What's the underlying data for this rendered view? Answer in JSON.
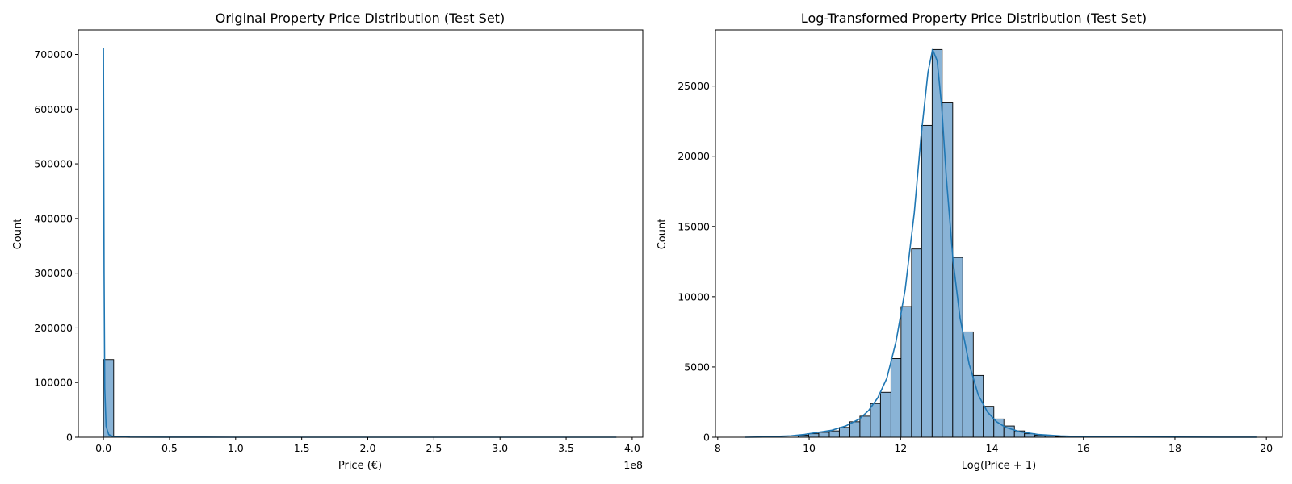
{
  "chart_data": [
    {
      "type": "histogram",
      "title": "Original Property Price Distribution (Test Set)",
      "xlabel": "Price (€)",
      "ylabel": "Count",
      "x_offset_label": "1e8",
      "xlim": [
        -0.19,
        4.08
      ],
      "ylim": [
        0,
        745000
      ],
      "x_ticks": [
        0.0,
        0.5,
        1.0,
        1.5,
        2.0,
        2.5,
        3.0,
        3.5,
        4.0
      ],
      "x_tick_labels": [
        "0.0",
        "0.5",
        "1.0",
        "1.5",
        "2.0",
        "2.5",
        "3.0",
        "3.5",
        "4.0"
      ],
      "y_ticks": [
        0,
        100000,
        200000,
        300000,
        400000,
        500000,
        600000,
        700000
      ],
      "y_tick_labels": [
        "0",
        "100000",
        "200000",
        "300000",
        "400000",
        "500000",
        "600000",
        "700000"
      ],
      "bins": [
        {
          "x0": 0.0,
          "x1": 0.0775,
          "count": 142000
        }
      ],
      "kde": {
        "x": [
          0.0,
          0.005,
          0.01,
          0.02,
          0.04,
          0.07,
          0.1,
          0.2,
          0.5,
          1.0,
          2.0,
          3.0,
          3.88
        ],
        "y": [
          712000,
          300000,
          90000,
          20000,
          5000,
          1500,
          800,
          200,
          50,
          10,
          5,
          2,
          0
        ]
      },
      "grid": false,
      "colors": {
        "bar_fill": "#89b3d6",
        "bar_edge": "#000000",
        "kde": "#1f77b4"
      }
    },
    {
      "type": "histogram",
      "title": "Log-Transformed Property Price Distribution (Test Set)",
      "xlabel": "Log(Price + 1)",
      "ylabel": "Count",
      "xlim": [
        7.95,
        20.35
      ],
      "ylim": [
        0,
        29000
      ],
      "x_ticks": [
        8,
        10,
        12,
        14,
        16,
        18,
        20
      ],
      "x_tick_labels": [
        "8",
        "10",
        "12",
        "14",
        "16",
        "18",
        "20"
      ],
      "y_ticks": [
        0,
        5000,
        10000,
        15000,
        20000,
        25000
      ],
      "y_tick_labels": [
        "0",
        "5000",
        "10000",
        "15000",
        "20000",
        "25000"
      ],
      "bins": [
        {
          "x0": 9.76,
          "x1": 9.99,
          "count": 150
        },
        {
          "x0": 9.99,
          "x1": 10.21,
          "count": 250
        },
        {
          "x0": 10.21,
          "x1": 10.44,
          "count": 350
        },
        {
          "x0": 10.44,
          "x1": 10.66,
          "count": 450
        },
        {
          "x0": 10.66,
          "x1": 10.89,
          "count": 700
        },
        {
          "x0": 10.89,
          "x1": 11.11,
          "count": 1100
        },
        {
          "x0": 11.11,
          "x1": 11.34,
          "count": 1500
        },
        {
          "x0": 11.34,
          "x1": 11.56,
          "count": 2400
        },
        {
          "x0": 11.56,
          "x1": 11.79,
          "count": 3200
        },
        {
          "x0": 11.79,
          "x1": 12.01,
          "count": 5600
        },
        {
          "x0": 12.01,
          "x1": 12.24,
          "count": 9300
        },
        {
          "x0": 12.24,
          "x1": 12.46,
          "count": 13400
        },
        {
          "x0": 12.46,
          "x1": 12.69,
          "count": 22200
        },
        {
          "x0": 12.69,
          "x1": 12.91,
          "count": 27600
        },
        {
          "x0": 12.91,
          "x1": 13.14,
          "count": 23800
        },
        {
          "x0": 13.14,
          "x1": 13.36,
          "count": 12800
        },
        {
          "x0": 13.36,
          "x1": 13.59,
          "count": 7500
        },
        {
          "x0": 13.59,
          "x1": 13.81,
          "count": 4400
        },
        {
          "x0": 13.81,
          "x1": 14.04,
          "count": 2200
        },
        {
          "x0": 14.04,
          "x1": 14.26,
          "count": 1300
        },
        {
          "x0": 14.26,
          "x1": 14.49,
          "count": 800
        },
        {
          "x0": 14.49,
          "x1": 14.71,
          "count": 450
        },
        {
          "x0": 14.71,
          "x1": 14.94,
          "count": 250
        },
        {
          "x0": 14.94,
          "x1": 15.16,
          "count": 150
        },
        {
          "x0": 15.16,
          "x1": 15.39,
          "count": 80
        },
        {
          "x0": 15.39,
          "x1": 15.61,
          "count": 40
        }
      ],
      "kde": {
        "x": [
          8.6,
          9.0,
          9.3,
          9.6,
          9.9,
          10.2,
          10.5,
          10.8,
          11.1,
          11.3,
          11.5,
          11.7,
          11.9,
          12.1,
          12.3,
          12.45,
          12.6,
          12.7,
          12.8,
          12.9,
          13.0,
          13.15,
          13.3,
          13.5,
          13.7,
          13.9,
          14.1,
          14.3,
          14.6,
          15.0,
          15.5,
          16.0,
          17.0,
          18.0,
          19.0,
          19.8
        ],
        "y": [
          0,
          20,
          60,
          100,
          200,
          350,
          500,
          800,
          1300,
          1900,
          2800,
          4200,
          6800,
          10500,
          16000,
          21500,
          26000,
          27600,
          26800,
          23500,
          18500,
          12500,
          8500,
          5200,
          3000,
          1800,
          1100,
          700,
          400,
          200,
          90,
          40,
          15,
          8,
          5,
          2
        ]
      },
      "grid": false,
      "colors": {
        "bar_fill": "#89b3d6",
        "bar_edge": "#000000",
        "kde": "#1f77b4"
      }
    }
  ]
}
